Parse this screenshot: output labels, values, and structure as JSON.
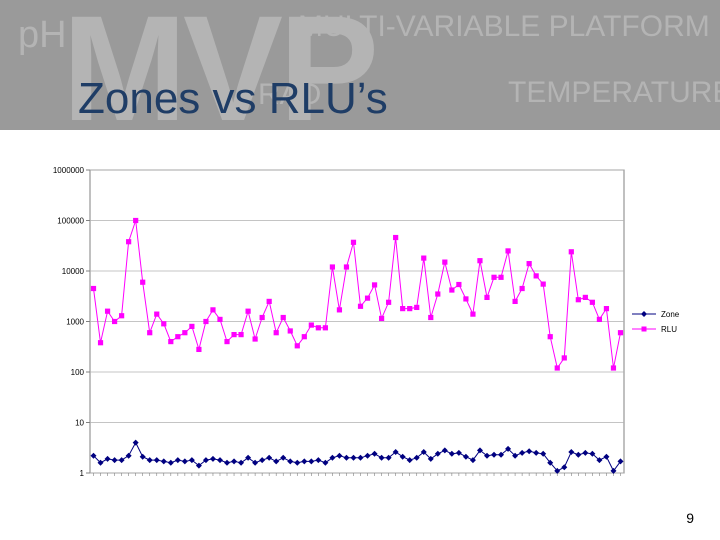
{
  "slide": {
    "title": "Zones vs RLU’s",
    "page_number": "9",
    "banner_watermark": {
      "ph": "pH",
      "mvp": "MVP",
      "multi": "MULTI-VARIABLE PLATFORM",
      "radiation": "RAD",
      "temperature": "TEMPERATURE"
    }
  },
  "colors": {
    "zone": "#000080",
    "rlu": "#ff00ff",
    "banner": "#9a9a9a",
    "title": "#1f3d66"
  },
  "chart_data": {
    "type": "line",
    "yscale": "log",
    "ylim": [
      1,
      1000000
    ],
    "ytick_labels": [
      "1000000",
      "100000",
      "10000",
      "1000",
      "100",
      "10",
      "1"
    ],
    "ytick_values": [
      1000000,
      100000,
      10000,
      1000,
      100,
      10,
      1
    ],
    "grid": true,
    "legend_position": "right",
    "series": [
      {
        "name": "Zone",
        "marker": "diamond",
        "values": [
          2.2,
          1.6,
          1.9,
          1.8,
          1.8,
          2.2,
          4,
          2.1,
          1.8,
          1.8,
          1.7,
          1.6,
          1.8,
          1.7,
          1.8,
          1.4,
          1.8,
          1.9,
          1.8,
          1.6,
          1.7,
          1.6,
          2,
          1.6,
          1.8,
          2,
          1.7,
          2,
          1.7,
          1.6,
          1.7,
          1.7,
          1.8,
          1.6,
          2,
          2.2,
          2,
          2,
          2,
          2.2,
          2.4,
          2,
          2,
          2.6,
          2.1,
          1.8,
          2,
          2.6,
          1.9,
          2.4,
          2.8,
          2.4,
          2.5,
          2.1,
          1.8,
          2.8,
          2.2,
          2.3,
          2.3,
          3,
          2.2,
          2.5,
          2.7,
          2.5,
          2.4,
          1.6,
          1.1,
          1.3,
          2.6,
          2.3,
          2.5,
          2.4,
          1.8,
          2.1,
          1.1,
          1.7
        ]
      },
      {
        "name": "RLU",
        "marker": "square",
        "values": [
          4500,
          380,
          1600,
          1000,
          1300,
          38000,
          100000,
          6000,
          600,
          1400,
          900,
          400,
          500,
          600,
          800,
          280,
          1000,
          1700,
          1100,
          400,
          550,
          550,
          1600,
          450,
          1200,
          2500,
          600,
          1200,
          650,
          330,
          500,
          850,
          750,
          750,
          12000,
          1700,
          12000,
          37000,
          2000,
          2900,
          5300,
          1150,
          2400,
          46000,
          1800,
          1800,
          1900,
          18000,
          1200,
          3500,
          15000,
          4200,
          5400,
          2800,
          1400,
          16000,
          3000,
          7500,
          7500,
          25000,
          2500,
          4500,
          14000,
          8000,
          5500,
          500,
          120,
          190,
          24000,
          2700,
          3000,
          2400,
          1100,
          1800,
          120,
          600
        ]
      }
    ]
  }
}
